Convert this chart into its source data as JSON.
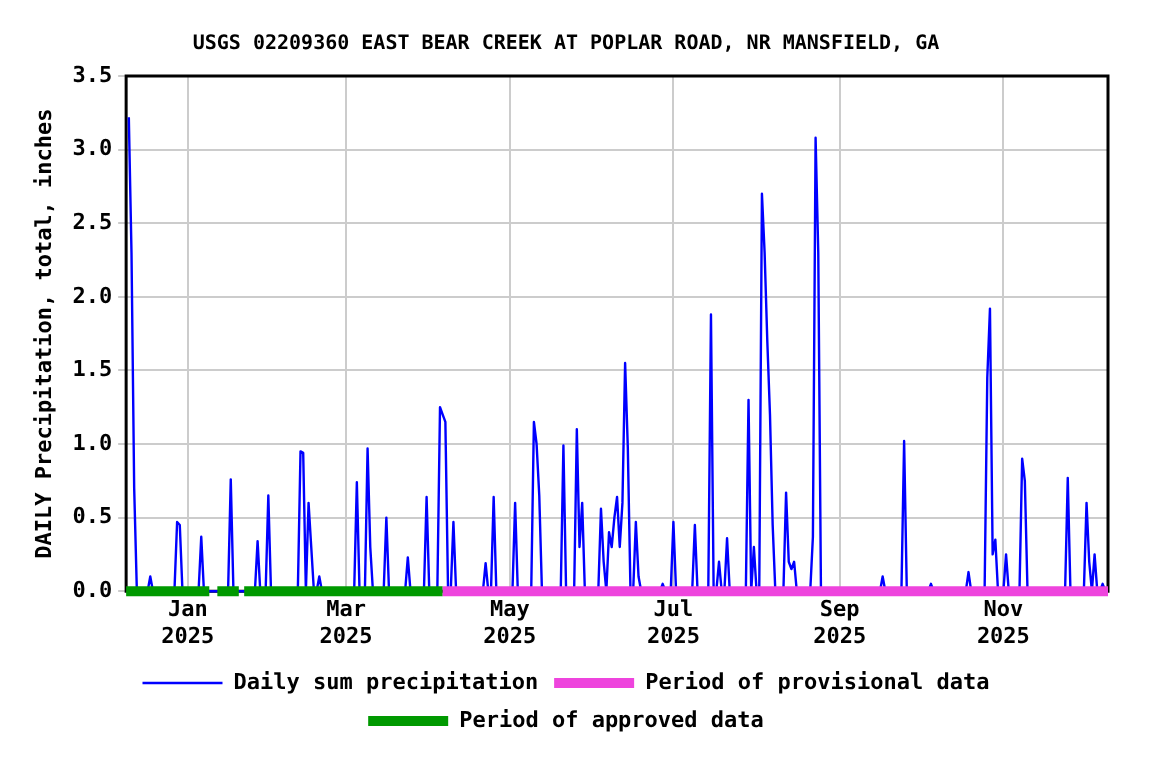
{
  "chart_data": {
    "type": "line",
    "title": "USGS 02209360 EAST BEAR CREEK AT POPLAR ROAD, NR MANSFIELD, GA",
    "ylabel": "DAILY Precipitation, total, inches",
    "xlim": [
      "2024-12-09",
      "2025-12-10"
    ],
    "xticks": [
      {
        "value": "2025-01-01",
        "label": "Jan 2025"
      },
      {
        "value": "2025-03-01",
        "label": "Mar 2025"
      },
      {
        "value": "2025-05-01",
        "label": "May 2025"
      },
      {
        "value": "2025-07-01",
        "label": "Jul 2025"
      },
      {
        "value": "2025-09-01",
        "label": "Sep 2025"
      },
      {
        "value": "2025-11-01",
        "label": "Nov 2025"
      }
    ],
    "ylim": [
      0,
      3.5
    ],
    "yticks": [
      {
        "value": 0,
        "label": "0.0"
      },
      0.5,
      {
        "value": 1,
        "label": "1.0"
      },
      1.5,
      {
        "value": 2,
        "label": "2.0"
      },
      2.5,
      {
        "value": 3,
        "label": "3.0"
      },
      3.5
    ],
    "grid": true,
    "legend": "bottom",
    "marker": "none",
    "line_style": "solid",
    "series": [
      {
        "name": "Daily sum precipitation",
        "color": "#0000ff",
        "type": "line",
        "x": [
          "2024-12-10",
          "2024-12-11",
          "2024-12-12",
          "2024-12-13",
          "2024-12-17",
          "2024-12-18",
          "2024-12-19",
          "2024-12-27",
          "2024-12-28",
          "2024-12-29",
          "2024-12-30",
          "2025-01-05",
          "2025-01-06",
          "2025-01-07",
          "2025-01-16",
          "2025-01-17",
          "2025-01-18",
          "2025-01-26",
          "2025-01-27",
          "2025-01-28",
          "2025-01-30",
          "2025-01-31",
          "2025-02-01",
          "2025-02-11",
          "2025-02-12",
          "2025-02-13",
          "2025-02-14",
          "2025-02-15",
          "2025-02-16",
          "2025-02-17",
          "2025-02-18",
          "2025-02-19",
          "2025-02-20",
          "2025-03-04",
          "2025-03-05",
          "2025-03-06",
          "2025-03-08",
          "2025-03-09",
          "2025-03-10",
          "2025-03-11",
          "2025-03-15",
          "2025-03-16",
          "2025-03-17",
          "2025-03-23",
          "2025-03-24",
          "2025-03-25",
          "2025-03-30",
          "2025-03-31",
          "2025-04-01",
          "2025-04-04",
          "2025-04-05",
          "2025-04-06",
          "2025-04-07",
          "2025-04-08",
          "2025-04-09",
          "2025-04-10",
          "2025-04-11",
          "2025-04-21",
          "2025-04-22",
          "2025-04-23",
          "2025-04-24",
          "2025-04-25",
          "2025-04-26",
          "2025-05-02",
          "2025-05-03",
          "2025-05-04",
          "2025-05-09",
          "2025-05-10",
          "2025-05-11",
          "2025-05-12",
          "2025-05-13",
          "2025-05-20",
          "2025-05-21",
          "2025-05-22",
          "2025-05-25",
          "2025-05-26",
          "2025-05-27",
          "2025-05-28",
          "2025-05-29",
          "2025-06-03",
          "2025-06-04",
          "2025-06-05",
          "2025-06-06",
          "2025-06-07",
          "2025-06-08",
          "2025-06-09",
          "2025-06-10",
          "2025-06-11",
          "2025-06-12",
          "2025-06-13",
          "2025-06-14",
          "2025-06-15",
          "2025-06-16",
          "2025-06-17",
          "2025-06-18",
          "2025-06-19",
          "2025-06-26",
          "2025-06-27",
          "2025-06-28",
          "2025-06-30",
          "2025-07-01",
          "2025-07-02",
          "2025-07-08",
          "2025-07-09",
          "2025-07-10",
          "2025-07-14",
          "2025-07-15",
          "2025-07-16",
          "2025-07-17",
          "2025-07-18",
          "2025-07-19",
          "2025-07-20",
          "2025-07-21",
          "2025-07-22",
          "2025-07-28",
          "2025-07-29",
          "2025-07-30",
          "2025-07-31",
          "2025-08-01",
          "2025-08-02",
          "2025-08-03",
          "2025-08-04",
          "2025-08-05",
          "2025-08-06",
          "2025-08-07",
          "2025-08-08",
          "2025-08-11",
          "2025-08-12",
          "2025-08-13",
          "2025-08-14",
          "2025-08-15",
          "2025-08-16",
          "2025-08-21",
          "2025-08-22",
          "2025-08-23",
          "2025-08-24",
          "2025-08-25",
          "2025-09-16",
          "2025-09-17",
          "2025-09-18",
          "2025-09-24",
          "2025-09-25",
          "2025-09-26",
          "2025-10-04",
          "2025-10-05",
          "2025-10-06",
          "2025-10-18",
          "2025-10-19",
          "2025-10-20",
          "2025-10-25",
          "2025-10-26",
          "2025-10-27",
          "2025-10-28",
          "2025-10-29",
          "2025-10-30",
          "2025-11-01",
          "2025-11-02",
          "2025-11-03",
          "2025-11-07",
          "2025-11-08",
          "2025-11-09",
          "2025-11-10",
          "2025-11-24",
          "2025-11-25",
          "2025-11-26",
          "2025-12-01",
          "2025-12-02",
          "2025-12-03",
          "2025-12-04",
          "2025-12-05",
          "2025-12-06",
          "2025-12-07",
          "2025-12-08",
          "2025-12-09"
        ],
        "values": [
          3.22,
          2.3,
          0.7,
          0,
          0,
          0.1,
          0,
          0,
          0.47,
          0.45,
          0,
          0,
          0.37,
          0,
          0,
          0.76,
          0,
          0,
          0.34,
          0,
          0,
          0.65,
          0,
          0,
          0.95,
          0.94,
          0,
          0.6,
          0.3,
          0,
          0,
          0.1,
          0,
          0,
          0.74,
          0,
          0,
          0.97,
          0.3,
          0,
          0,
          0.5,
          0,
          0,
          0.23,
          0,
          0,
          0.64,
          0,
          0,
          1.25,
          1.2,
          1.15,
          0,
          0,
          0.47,
          0,
          0,
          0.19,
          0,
          0,
          0.64,
          0,
          0,
          0.6,
          0,
          0,
          1.15,
          1.0,
          0.65,
          0,
          0,
          0.99,
          0,
          0,
          1.1,
          0.3,
          0.6,
          0,
          0,
          0.56,
          0.2,
          0,
          0.4,
          0.3,
          0.5,
          0.64,
          0.3,
          0.6,
          1.55,
          0.98,
          0,
          0,
          0.47,
          0.1,
          0,
          0,
          0.05,
          0,
          0,
          0.47,
          0,
          0,
          0.45,
          0,
          0,
          1.88,
          0,
          0,
          0.2,
          0,
          0,
          0.36,
          0,
          0,
          1.3,
          0,
          0.3,
          0,
          0,
          2.7,
          2.3,
          1.7,
          1.2,
          0.45,
          0,
          0,
          0.67,
          0.2,
          0.15,
          0.2,
          0,
          0,
          0.37,
          3.08,
          2.3,
          0,
          0,
          0.1,
          0,
          0,
          1.02,
          0,
          0,
          0.05,
          0,
          0,
          0.13,
          0,
          0,
          1.45,
          1.92,
          0.25,
          0.35,
          0,
          0,
          0.25,
          0,
          0,
          0.9,
          0.75,
          0,
          0,
          0.77,
          0,
          0,
          0.6,
          0.2,
          0,
          0.25,
          0,
          0,
          0.05,
          0
        ]
      },
      {
        "name": "Period of provisional data",
        "color": "#ee44dd",
        "x": [
          "2025-04-06",
          "2025-12-10"
        ],
        "values": [
          0,
          0
        ]
      },
      {
        "name": "Period of approved data",
        "color": "#009900",
        "x": [
          "2024-12-09",
          "2025-01-09",
          "2025-01-10",
          "2025-01-12",
          "2025-01-20",
          "2025-01-21",
          "2025-01-22",
          "2025-04-06"
        ],
        "values": [
          0,
          0,
          null,
          0,
          0,
          null,
          0,
          0
        ]
      }
    ]
  }
}
